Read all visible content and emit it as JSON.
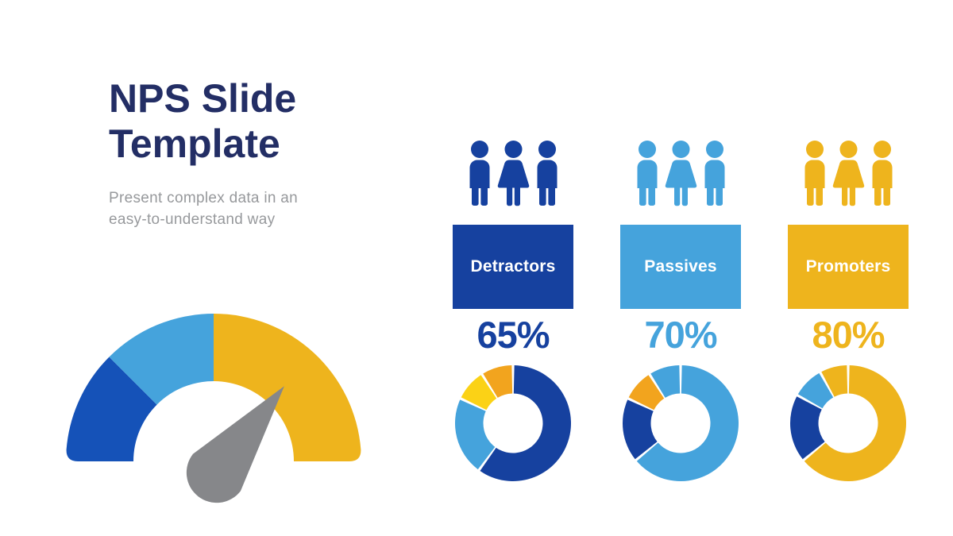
{
  "title": {
    "line1": "NPS Slide",
    "line2": "Template"
  },
  "subtitle": {
    "line1": "Present complex data in an",
    "line2": "easy-to-understand way"
  },
  "colors": {
    "navy": "#232E65",
    "dark_blue": "#16419F",
    "gauge_dark_blue": "#1552B8",
    "light_blue": "#45A3DC",
    "yellow": "#EEB41D",
    "amber": "#F2A41E",
    "bright_yellow": "#FBD216",
    "needle_gray": "#86878A",
    "subtitle_gray": "#97999C",
    "label_white": "#FFFFFF"
  },
  "columns": [
    {
      "label": "Detractors",
      "percent": "65%",
      "color_key": "dark_blue",
      "people": [
        "man",
        "woman",
        "man"
      ]
    },
    {
      "label": "Passives",
      "percent": "70%",
      "color_key": "light_blue",
      "people": [
        "man",
        "woman",
        "man"
      ]
    },
    {
      "label": "Promoters",
      "percent": "80%",
      "color_key": "yellow",
      "people": [
        "man",
        "woman",
        "man"
      ]
    }
  ],
  "chart_data": [
    {
      "type": "gauge",
      "legend_position": "none",
      "segments": [
        {
          "name": "detractors",
          "color": "gauge_dark_blue",
          "start_deg": 180,
          "end_deg": 135
        },
        {
          "name": "passives",
          "color": "light_blue",
          "start_deg": 135,
          "end_deg": 90
        },
        {
          "name": "promoters",
          "color": "yellow",
          "start_deg": 90,
          "end_deg": 0
        }
      ],
      "needle_angle_deg": 52
    },
    {
      "type": "pie",
      "category": "Detractors",
      "value_label": "65%",
      "segments": [
        {
          "color": "dark_blue",
          "percent": 60
        },
        {
          "color": "light_blue",
          "percent": 22
        },
        {
          "color": "bright_yellow",
          "percent": 9
        },
        {
          "color": "amber",
          "percent": 9
        }
      ]
    },
    {
      "type": "pie",
      "category": "Passives",
      "value_label": "70%",
      "segments": [
        {
          "color": "light_blue",
          "percent": 64
        },
        {
          "color": "dark_blue",
          "percent": 18
        },
        {
          "color": "amber",
          "percent": 9
        },
        {
          "color": "light_blue",
          "percent": 9
        }
      ]
    },
    {
      "type": "pie",
      "category": "Promoters",
      "value_label": "80%",
      "segments": [
        {
          "color": "yellow",
          "percent": 64
        },
        {
          "color": "dark_blue",
          "percent": 19
        },
        {
          "color": "light_blue",
          "percent": 9
        },
        {
          "color": "yellow",
          "percent": 8
        }
      ]
    }
  ]
}
